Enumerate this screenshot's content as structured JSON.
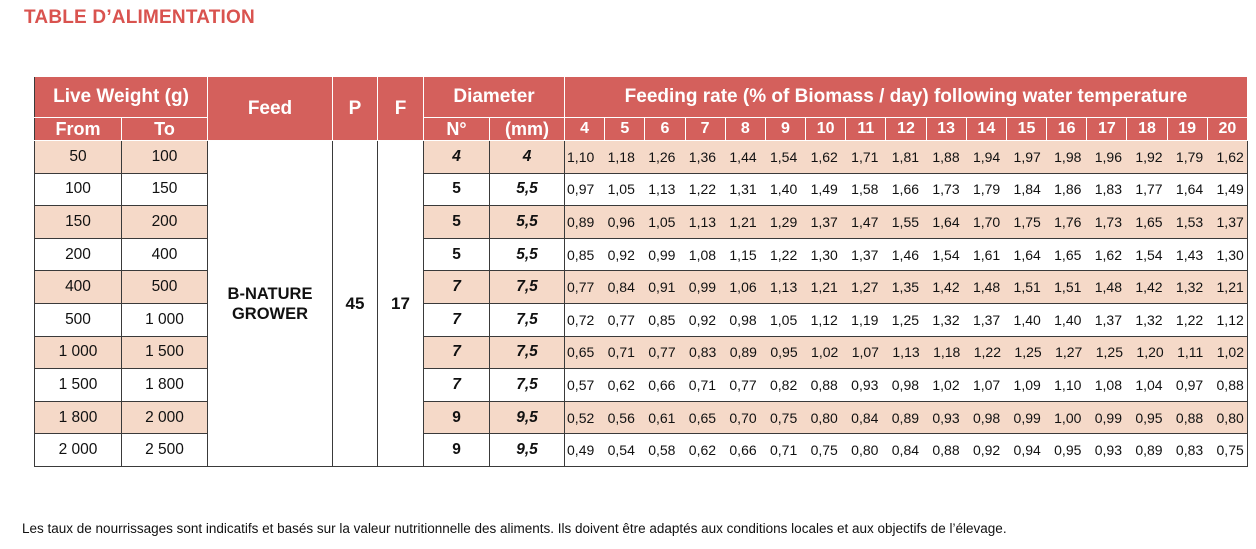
{
  "title": "TABLE D’ALIMENTATION",
  "headers": {
    "live_weight": "Live Weight (g)",
    "from": "From",
    "to": "To",
    "feed": "Feed",
    "p": "P",
    "f": "F",
    "diameter": "Diameter",
    "no": "N°",
    "mm": "(mm)",
    "feeding_rate": "Feeding rate (% of Biomass / day)  following water temperature",
    "temps": [
      "4",
      "5",
      "6",
      "7",
      "8",
      "9",
      "10",
      "11",
      "12",
      "13",
      "14",
      "15",
      "16",
      "17",
      "18",
      "19",
      "20"
    ]
  },
  "feed": {
    "name": "B-NATURE GROWER",
    "p": "45",
    "f": "17"
  },
  "rows": [
    {
      "from": "50",
      "to": "100",
      "no": "4",
      "mm": "4",
      "rates": [
        "1,10",
        "1,18",
        "1,26",
        "1,36",
        "1,44",
        "1,54",
        "1,62",
        "1,71",
        "1,81",
        "1,88",
        "1,94",
        "1,97",
        "1,98",
        "1,96",
        "1,92",
        "1,79",
        "1,62"
      ]
    },
    {
      "from": "100",
      "to": "150",
      "no": "5",
      "mm": "5,5",
      "rates": [
        "0,97",
        "1,05",
        "1,13",
        "1,22",
        "1,31",
        "1,40",
        "1,49",
        "1,58",
        "1,66",
        "1,73",
        "1,79",
        "1,84",
        "1,86",
        "1,83",
        "1,77",
        "1,64",
        "1,49"
      ]
    },
    {
      "from": "150",
      "to": "200",
      "no": "5",
      "mm": "5,5",
      "rates": [
        "0,89",
        "0,96",
        "1,05",
        "1,13",
        "1,21",
        "1,29",
        "1,37",
        "1,47",
        "1,55",
        "1,64",
        "1,70",
        "1,75",
        "1,76",
        "1,73",
        "1,65",
        "1,53",
        "1,37"
      ]
    },
    {
      "from": "200",
      "to": "400",
      "no": "5",
      "mm": "5,5",
      "rates": [
        "0,85",
        "0,92",
        "0,99",
        "1,08",
        "1,15",
        "1,22",
        "1,30",
        "1,37",
        "1,46",
        "1,54",
        "1,61",
        "1,64",
        "1,65",
        "1,62",
        "1,54",
        "1,43",
        "1,30"
      ]
    },
    {
      "from": "400",
      "to": "500",
      "no": "7",
      "mm": "7,5",
      "rates": [
        "0,77",
        "0,84",
        "0,91",
        "0,99",
        "1,06",
        "1,13",
        "1,21",
        "1,27",
        "1,35",
        "1,42",
        "1,48",
        "1,51",
        "1,51",
        "1,48",
        "1,42",
        "1,32",
        "1,21"
      ]
    },
    {
      "from": "500",
      "to": "1 000",
      "no": "7",
      "mm": "7,5",
      "rates": [
        "0,72",
        "0,77",
        "0,85",
        "0,92",
        "0,98",
        "1,05",
        "1,12",
        "1,19",
        "1,25",
        "1,32",
        "1,37",
        "1,40",
        "1,40",
        "1,37",
        "1,32",
        "1,22",
        "1,12"
      ]
    },
    {
      "from": "1 000",
      "to": "1 500",
      "no": "7",
      "mm": "7,5",
      "rates": [
        "0,65",
        "0,71",
        "0,77",
        "0,83",
        "0,89",
        "0,95",
        "1,02",
        "1,07",
        "1,13",
        "1,18",
        "1,22",
        "1,25",
        "1,27",
        "1,25",
        "1,20",
        "1,11",
        "1,02"
      ]
    },
    {
      "from": "1 500",
      "to": "1 800",
      "no": "7",
      "mm": "7,5",
      "rates": [
        "0,57",
        "0,62",
        "0,66",
        "0,71",
        "0,77",
        "0,82",
        "0,88",
        "0,93",
        "0,98",
        "1,02",
        "1,07",
        "1,09",
        "1,10",
        "1,08",
        "1,04",
        "0,97",
        "0,88"
      ]
    },
    {
      "from": "1 800",
      "to": "2 000",
      "no": "9",
      "mm": "9,5",
      "rates": [
        "0,52",
        "0,56",
        "0,61",
        "0,65",
        "0,70",
        "0,75",
        "0,80",
        "0,84",
        "0,89",
        "0,93",
        "0,98",
        "0,99",
        "1,00",
        "0,99",
        "0,95",
        "0,88",
        "0,80"
      ]
    },
    {
      "from": "2 000",
      "to": "2 500",
      "no": "9",
      "mm": "9,5",
      "rates": [
        "0,49",
        "0,54",
        "0,58",
        "0,62",
        "0,66",
        "0,71",
        "0,75",
        "0,80",
        "0,84",
        "0,88",
        "0,92",
        "0,94",
        "0,95",
        "0,93",
        "0,89",
        "0,83",
        "0,75"
      ]
    }
  ],
  "footnote": "Les taux de nourrissages sont indicatifs et basés sur la valeur nutritionnelle des aliments. Ils doivent être adaptés aux conditions locales et aux objectifs de l’élevage."
}
